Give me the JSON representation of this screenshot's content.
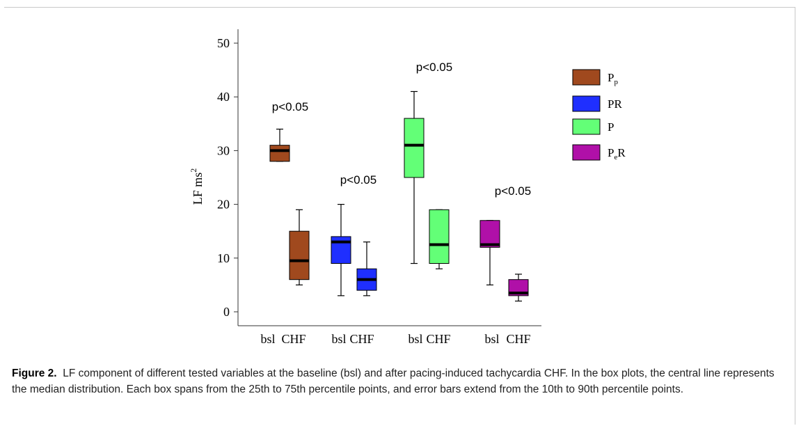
{
  "chart_data": {
    "type": "box",
    "ylabel": "LF  ms",
    "ylabel_superscript": "2",
    "ylim": [
      0,
      50
    ],
    "yticks": [
      0,
      10,
      20,
      30,
      40,
      50
    ],
    "x_tick_labels": [
      "bsl",
      "CHF",
      "bsl",
      "CHF",
      "bsl",
      "CHF",
      "bsl",
      "CHF"
    ],
    "legend": [
      {
        "label": "P",
        "sub": "p",
        "suffix": "",
        "color": "#a0491e"
      },
      {
        "label": "PR",
        "sub": "",
        "suffix": "",
        "color": "#1f2fff"
      },
      {
        "label": "P",
        "sub": "",
        "suffix": "",
        "color": "#63ff77"
      },
      {
        "label": "P",
        "sub": "e",
        "suffix": "R",
        "color": "#b010a8"
      }
    ],
    "annotations": [
      "p<0.05",
      "p<0.05",
      "p<0.05",
      "p<0.05"
    ],
    "series": [
      {
        "color": "#a0491e",
        "boxes": [
          {
            "condition": "bsl",
            "p10": 28,
            "q1": 28,
            "median": 30,
            "q3": 31,
            "p90": 34
          },
          {
            "condition": "CHF",
            "p10": 5,
            "q1": 6,
            "median": 9.5,
            "q3": 15,
            "p90": 19
          }
        ]
      },
      {
        "color": "#1f2fff",
        "boxes": [
          {
            "condition": "bsl",
            "p10": 3,
            "q1": 9,
            "median": 13,
            "q3": 14,
            "p90": 20
          },
          {
            "condition": "CHF",
            "p10": 3,
            "q1": 4,
            "median": 6,
            "q3": 8,
            "p90": 13
          }
        ]
      },
      {
        "color": "#63ff77",
        "boxes": [
          {
            "condition": "bsl",
            "p10": 9,
            "q1": 25,
            "median": 31,
            "q3": 36,
            "p90": 41
          },
          {
            "condition": "CHF",
            "p10": 8,
            "q1": 9,
            "median": 12.5,
            "q3": 19,
            "p90": 19
          }
        ]
      },
      {
        "color": "#b010a8",
        "boxes": [
          {
            "condition": "bsl",
            "p10": 5,
            "q1": 12,
            "median": 12.5,
            "q3": 17,
            "p90": 17
          },
          {
            "condition": "CHF",
            "p10": 2,
            "q1": 3,
            "median": 3.5,
            "q3": 6,
            "p90": 7
          }
        ]
      }
    ]
  },
  "caption": {
    "label": "Figure 2.",
    "text": "LF component of different tested variables at the baseline (bsl) and after pacing-induced tachycardia CHF. In the box plots, the central line represents the median distribution. Each box spans from the 25th to 75th percentile points, and error bars extend from the 10th to 90th percentile points."
  }
}
